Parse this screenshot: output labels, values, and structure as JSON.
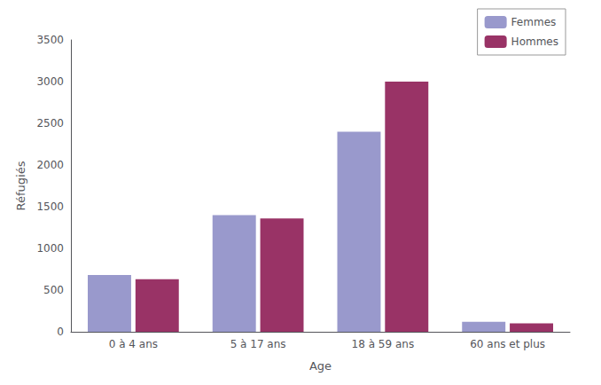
{
  "chart_data": {
    "type": "bar",
    "xlabel": "Age",
    "ylabel": "Réfugiés",
    "categories": [
      "0 à 4 ans",
      "5 à 17 ans",
      "18 à 59 ans",
      "60 ans et plus"
    ],
    "series": [
      {
        "name": "Femmes",
        "color": "#9999CC",
        "values": [
          680,
          1400,
          2400,
          120
        ]
      },
      {
        "name": "Hommes",
        "color": "#993366",
        "values": [
          630,
          1360,
          3000,
          100
        ]
      }
    ],
    "ylim": [
      0,
      3500
    ],
    "yticks": [
      0,
      500,
      1000,
      1500,
      2000,
      2500,
      3000,
      3500
    ],
    "grid": false,
    "legend": "upper right"
  }
}
